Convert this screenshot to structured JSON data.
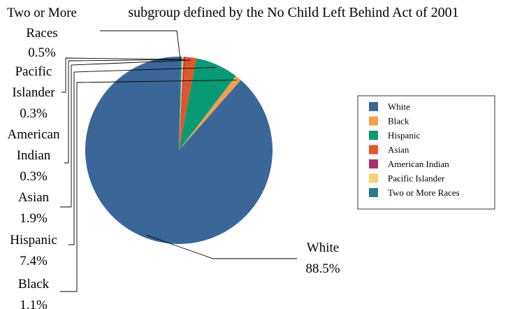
{
  "chart_data": {
    "type": "pie",
    "title": "subgroup defined by the No Child Left Behind Act of 2001",
    "categories": [
      "White",
      "Black",
      "Hispanic",
      "Asian",
      "American Indian",
      "Pacific Islander",
      "Two or More Races"
    ],
    "values": [
      88.5,
      1.1,
      7.4,
      1.9,
      0.3,
      0.3,
      0.5
    ],
    "value_labels": [
      "88.5%",
      "1.1%",
      "7.4%",
      "1.9%",
      "0.3%",
      "0.3%",
      "0.5%"
    ],
    "label_lines": [
      [
        "White",
        "88.5%"
      ],
      [
        "Black",
        "1.1%"
      ],
      [
        "Hispanic",
        "7.4%"
      ],
      [
        "Asian",
        "1.9%"
      ],
      [
        "American",
        "Indian",
        "0.3%"
      ],
      [
        "Pacific",
        "Islander",
        "0.3%"
      ],
      [
        "Two or More",
        "Races",
        "0.5%"
      ]
    ],
    "colors": [
      "#3b6698",
      "#f0a050",
      "#079a74",
      "#e0582a",
      "#a83068",
      "#f8d070",
      "#2e7c8a"
    ],
    "legend": {
      "position": "right",
      "entries": [
        "White",
        "Black",
        "Hispanic",
        "Asian",
        "American Indian",
        "Pacific Islander",
        "Two or More Races"
      ]
    },
    "start_angle": "12 o'clock",
    "direction": "counterclockwise"
  }
}
